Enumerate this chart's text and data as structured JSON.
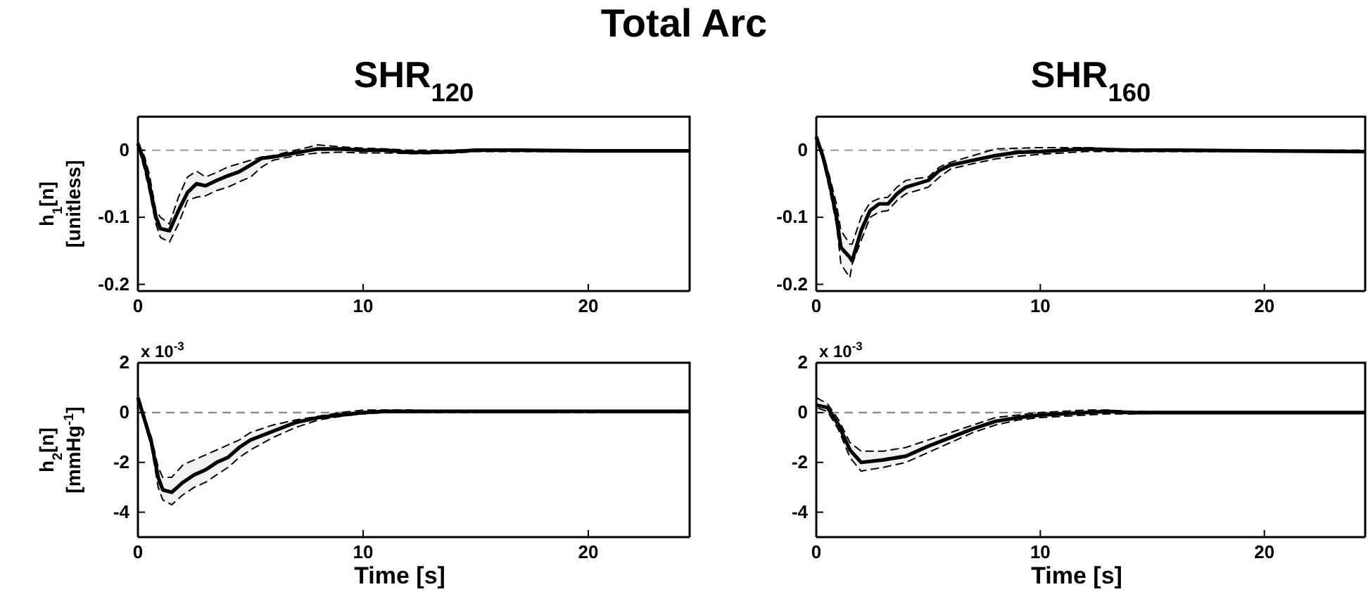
{
  "chart_data": [
    {
      "type": "line",
      "title": "Total Arc",
      "subtitle": "SHR$_{120}$",
      "ylabel": "h$_{1}$[n]\n[unitless]",
      "xlim": [
        0,
        24.5
      ],
      "xticks": [
        0,
        10,
        20
      ],
      "ylim": [
        -0.21,
        0.05
      ],
      "yticks": [
        -0.2,
        -0.1,
        0
      ],
      "grid": false,
      "line_style": "solid",
      "marker": "none",
      "ref_lines": [
        {
          "axis": "y",
          "value": 0,
          "color": "#aaaaaa",
          "line_style": "dashed"
        }
      ],
      "x": [
        0,
        0.3,
        0.5,
        0.8,
        1,
        1.4,
        1.8,
        2.2,
        2.6,
        3,
        3.5,
        4,
        4.5,
        5,
        5.5,
        6,
        7,
        8,
        9,
        10,
        11,
        12,
        13,
        14,
        15,
        17,
        20,
        24.5
      ],
      "series": [
        {
          "color": "#000000",
          "values": [
            0.01,
            -0.02,
            -0.05,
            -0.1,
            -0.117,
            -0.12,
            -0.09,
            -0.063,
            -0.05,
            -0.053,
            -0.045,
            -0.038,
            -0.032,
            -0.022,
            -0.012,
            -0.01,
            -0.004,
            0.002,
            0.002,
            0,
            0,
            -0.003,
            -0.003,
            -0.002,
            0,
            0,
            -0.001,
            -0.001
          ],
          "upper": [
            0.012,
            -0.01,
            -0.035,
            -0.09,
            -0.1,
            -0.11,
            -0.07,
            -0.04,
            -0.031,
            -0.04,
            -0.033,
            -0.025,
            -0.02,
            -0.015,
            -0.01,
            -0.008,
            0,
            0.008,
            0.005,
            0.003,
            0.002,
            0,
            0,
            0,
            0.001,
            0.001,
            0,
            0
          ],
          "lower": [
            0.008,
            -0.03,
            -0.06,
            -0.11,
            -0.13,
            -0.137,
            -0.11,
            -0.075,
            -0.07,
            -0.068,
            -0.06,
            -0.055,
            -0.047,
            -0.04,
            -0.025,
            -0.015,
            -0.008,
            -0.004,
            -0.003,
            -0.004,
            -0.004,
            -0.005,
            -0.005,
            -0.004,
            -0.002,
            -0.002,
            -0.002,
            -0.002
          ]
        }
      ]
    },
    {
      "type": "line",
      "subtitle": "SHR$_{160}$",
      "xlim": [
        0,
        24.5
      ],
      "xticks": [
        0,
        10,
        20
      ],
      "ylim": [
        -0.21,
        0.05
      ],
      "yticks": [
        -0.2,
        -0.1,
        0
      ],
      "grid": false,
      "line_style": "solid",
      "marker": "none",
      "ref_lines": [
        {
          "axis": "y",
          "value": 0,
          "color": "#aaaaaa",
          "line_style": "dashed"
        }
      ],
      "x": [
        0,
        0.3,
        0.6,
        0.9,
        1.1,
        1.5,
        1.6,
        2,
        2.4,
        2.8,
        3.2,
        3.6,
        4,
        4.5,
        5,
        5.5,
        6,
        7,
        8,
        9,
        10,
        12,
        14,
        16,
        20,
        24.5
      ],
      "series": [
        {
          "color": "#000000",
          "values": [
            0.02,
            -0.01,
            -0.05,
            -0.1,
            -0.145,
            -0.16,
            -0.165,
            -0.12,
            -0.09,
            -0.08,
            -0.08,
            -0.065,
            -0.055,
            -0.05,
            -0.045,
            -0.03,
            -0.022,
            -0.015,
            -0.008,
            -0.003,
            -0.002,
            0.002,
            0,
            0,
            -0.001,
            -0.002
          ],
          "upper": [
            0.022,
            -0.005,
            -0.04,
            -0.08,
            -0.12,
            -0.14,
            -0.14,
            -0.1,
            -0.078,
            -0.072,
            -0.07,
            -0.055,
            -0.045,
            -0.042,
            -0.04,
            -0.025,
            -0.018,
            -0.008,
            0.002,
            0.003,
            0.004,
            0.004,
            0,
            0,
            0,
            0
          ],
          "lower": [
            0.018,
            -0.015,
            -0.06,
            -0.11,
            -0.17,
            -0.19,
            -0.17,
            -0.135,
            -0.1,
            -0.092,
            -0.09,
            -0.075,
            -0.065,
            -0.06,
            -0.055,
            -0.04,
            -0.028,
            -0.02,
            -0.013,
            -0.009,
            -0.006,
            -0.002,
            -0.002,
            -0.002,
            -0.002,
            -0.002
          ]
        }
      ]
    },
    {
      "type": "line",
      "ylabel": "h$_{2}$[n]\n[mmHg$^{-1}$]",
      "xlabel": "Time [s]",
      "annotations": [
        "x 10$^{-3}$"
      ],
      "xlim": [
        0,
        24.5
      ],
      "xticks": [
        0,
        10,
        20
      ],
      "ylim": [
        -5,
        2
      ],
      "yticks": [
        -4,
        -2,
        0,
        2
      ],
      "grid": false,
      "line_style": "solid",
      "marker": "none",
      "ref_lines": [
        {
          "axis": "y",
          "value": 0,
          "color": "#888888",
          "line_style": "dashed"
        }
      ],
      "x": [
        0,
        0.3,
        0.6,
        0.9,
        1.1,
        1.5,
        2,
        2.5,
        3,
        3.5,
        4,
        4.5,
        5,
        6,
        7,
        8,
        9,
        10,
        11,
        12,
        14,
        17,
        20,
        24.5
      ],
      "series": [
        {
          "color": "#000000",
          "values": [
            0.6,
            -0.3,
            -1.2,
            -2.6,
            -3.1,
            -3.2,
            -2.8,
            -2.5,
            -2.3,
            -2,
            -1.8,
            -1.4,
            -1.1,
            -0.75,
            -0.4,
            -0.2,
            -0.1,
            0,
            0.05,
            0.05,
            0.05,
            0.05,
            0.05,
            0.05
          ],
          "upper": [
            0.6,
            -0.2,
            -1,
            -2.2,
            -2.6,
            -2.6,
            -2.1,
            -1.9,
            -1.7,
            -1.5,
            -1.3,
            -1.1,
            -0.8,
            -0.5,
            -0.3,
            -0.15,
            0,
            0.1,
            0.1,
            0.1,
            0.05,
            0.05,
            0.05,
            0.05
          ],
          "lower": [
            0.5,
            -0.4,
            -1.4,
            -3,
            -3.5,
            -3.7,
            -3.3,
            -3,
            -2.8,
            -2.5,
            -2.2,
            -1.8,
            -1.5,
            -1,
            -0.6,
            -0.3,
            -0.15,
            -0.05,
            0,
            0,
            0,
            0,
            0,
            0
          ]
        }
      ]
    },
    {
      "type": "line",
      "xlabel": "Time [s]",
      "annotations": [
        "x 10$^{-3}$"
      ],
      "xlim": [
        0,
        24.5
      ],
      "xticks": [
        0,
        10,
        20
      ],
      "ylim": [
        -5,
        2
      ],
      "yticks": [
        -4,
        -2,
        0,
        2
      ],
      "grid": false,
      "line_style": "solid",
      "marker": "none",
      "ref_lines": [
        {
          "axis": "y",
          "value": 0,
          "color": "#888888",
          "line_style": "dashed"
        }
      ],
      "x": [
        0,
        0.5,
        1,
        1.5,
        2,
        3,
        4,
        5,
        6,
        7,
        8,
        9,
        10,
        11,
        12,
        13,
        14,
        17,
        20,
        24.5
      ],
      "series": [
        {
          "color": "#000000",
          "values": [
            0.3,
            0.2,
            -0.5,
            -1.5,
            -2,
            -1.9,
            -1.75,
            -1.35,
            -1,
            -0.65,
            -0.35,
            -0.2,
            -0.1,
            -0.05,
            0,
            0.05,
            0,
            0,
            0,
            0
          ],
          "upper": [
            0.6,
            0.35,
            -0.3,
            -1.2,
            -1.55,
            -1.55,
            -1.4,
            -1.1,
            -0.8,
            -0.5,
            -0.2,
            -0.1,
            0,
            0.05,
            0.1,
            0.1,
            0.05,
            0,
            0,
            0
          ],
          "lower": [
            0.2,
            0.05,
            -0.7,
            -1.8,
            -2.35,
            -2.2,
            -2,
            -1.6,
            -1.2,
            -0.8,
            -0.5,
            -0.3,
            -0.2,
            -0.15,
            -0.1,
            -0.05,
            -0.05,
            0,
            0,
            0
          ]
        }
      ]
    }
  ]
}
